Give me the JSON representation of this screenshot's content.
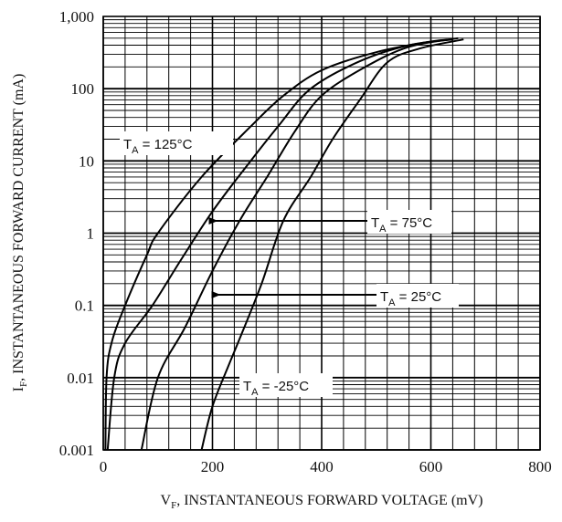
{
  "chart_data": {
    "type": "line",
    "title": "",
    "xlabel_main": "V",
    "xlabel_sub": "F",
    "xlabel_rest": ", INSTANTANEOUS FORWARD VOLTAGE (mV)",
    "ylabel_main": "I",
    "ylabel_sub": "F",
    "ylabel_rest": ", INSTANTANEOUS FORWARD CURRENT (mA)",
    "x_scale": "linear",
    "y_scale": "log",
    "xlim": [
      0,
      800
    ],
    "ylim": [
      0.001,
      1000
    ],
    "grid": true,
    "x_ticks": [
      {
        "value": 0,
        "label": "0"
      },
      {
        "value": 200,
        "label": "200"
      },
      {
        "value": 400,
        "label": "400"
      },
      {
        "value": 600,
        "label": "600"
      },
      {
        "value": 800,
        "label": "800"
      }
    ],
    "y_ticks": [
      {
        "value": 0.001,
        "label": "0.001"
      },
      {
        "value": 0.01,
        "label": "0.01"
      },
      {
        "value": 0.1,
        "label": "0.1"
      },
      {
        "value": 1,
        "label": "1"
      },
      {
        "value": 10,
        "label": "10"
      },
      {
        "value": 100,
        "label": "100"
      },
      {
        "value": 1000,
        "label": "1,000"
      }
    ],
    "series": [
      {
        "name_main": "T",
        "name_sub": "A",
        "name_rest": " = 125°C",
        "points": [
          [
            4,
            0.001
          ],
          [
            6,
            0.01
          ],
          [
            15,
            0.03
          ],
          [
            40,
            0.1
          ],
          [
            80,
            0.5
          ],
          [
            100,
            1
          ],
          [
            180,
            6
          ],
          [
            270,
            30
          ],
          [
            330,
            80
          ],
          [
            400,
            180
          ],
          [
            500,
            320
          ],
          [
            600,
            450
          ],
          [
            640,
            480
          ]
        ]
      },
      {
        "name_main": "T",
        "name_sub": "A",
        "name_rest": " = 75°C",
        "points": [
          [
            8,
            0.001
          ],
          [
            20,
            0.01
          ],
          [
            40,
            0.03
          ],
          [
            90,
            0.1
          ],
          [
            140,
            0.4
          ],
          [
            200,
            2
          ],
          [
            260,
            8
          ],
          [
            320,
            30
          ],
          [
            380,
            100
          ],
          [
            470,
            240
          ],
          [
            560,
            400
          ],
          [
            640,
            480
          ]
        ]
      },
      {
        "name_main": "T",
        "name_sub": "A",
        "name_rest": " = 25°C",
        "points": [
          [
            70,
            0.001
          ],
          [
            100,
            0.01
          ],
          [
            150,
            0.05
          ],
          [
            200,
            0.3
          ],
          [
            250,
            1.5
          ],
          [
            300,
            6
          ],
          [
            350,
            25
          ],
          [
            400,
            80
          ],
          [
            480,
            200
          ],
          [
            560,
            380
          ],
          [
            650,
            500
          ]
        ]
      },
      {
        "name_main": "T",
        "name_sub": "A",
        "name_rest": " = -25°C",
        "points": [
          [
            180,
            0.001
          ],
          [
            200,
            0.004
          ],
          [
            230,
            0.015
          ],
          [
            250,
            0.035
          ],
          [
            290,
            0.2
          ],
          [
            330,
            1.5
          ],
          [
            380,
            6
          ],
          [
            420,
            20
          ],
          [
            470,
            70
          ],
          [
            520,
            230
          ],
          [
            580,
            360
          ],
          [
            660,
            480
          ]
        ]
      }
    ],
    "annotations": [
      {
        "series": 0,
        "has_arrow": false
      },
      {
        "series": 1,
        "has_arrow": true,
        "arrow_to": [
          195,
          1.5
        ]
      },
      {
        "series": 2,
        "has_arrow": true,
        "arrow_to": [
          200,
          0.12
        ]
      },
      {
        "series": 3,
        "has_arrow": false
      }
    ]
  }
}
